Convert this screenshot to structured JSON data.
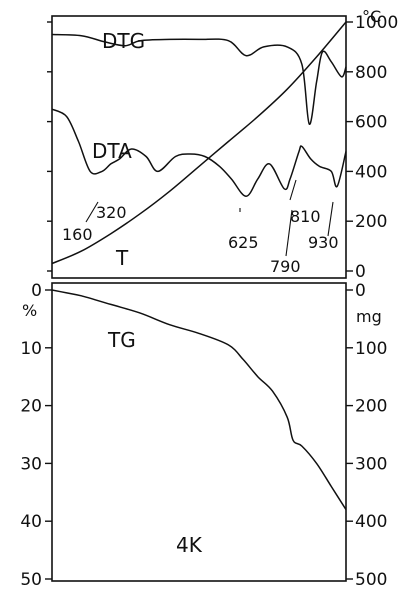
{
  "chart_data": {
    "type": "line",
    "title": "",
    "sample_label": "4K",
    "upper_panel": {
      "right_axis_unit": "°C",
      "right_axis_ticks": [
        0,
        200,
        400,
        600,
        800,
        1000
      ],
      "ylim": [
        0,
        1000
      ],
      "x_shared_note": "",
      "series": [
        {
          "name": "DTG",
          "shape": "derivative",
          "points": [
            [
              0,
              950
            ],
            [
              0.1,
              945
            ],
            [
              0.18,
              920
            ],
            [
              0.25,
              905
            ],
            [
              0.3,
              925
            ],
            [
              0.4,
              930
            ],
            [
              0.5,
              930
            ],
            [
              0.6,
              925
            ],
            [
              0.66,
              865
            ],
            [
              0.72,
              900
            ],
            [
              0.8,
              900
            ],
            [
              0.85,
              830
            ],
            [
              0.875,
              590
            ],
            [
              0.9,
              760
            ],
            [
              0.92,
              880
            ],
            [
              0.95,
              840
            ],
            [
              0.985,
              780
            ],
            [
              1,
              820
            ]
          ]
        },
        {
          "name": "DTA",
          "shape": "differential",
          "points": [
            [
              0,
              650
            ],
            [
              0.05,
              620
            ],
            [
              0.09,
              520
            ],
            [
              0.13,
              400
            ],
            [
              0.17,
              400
            ],
            [
              0.2,
              430
            ],
            [
              0.23,
              450
            ],
            [
              0.27,
              490
            ],
            [
              0.32,
              460
            ],
            [
              0.36,
              400
            ],
            [
              0.42,
              460
            ],
            [
              0.47,
              470
            ],
            [
              0.52,
              460
            ],
            [
              0.57,
              420
            ],
            [
              0.61,
              370
            ],
            [
              0.66,
              300
            ],
            [
              0.7,
              370
            ],
            [
              0.74,
              430
            ],
            [
              0.79,
              330
            ],
            [
              0.81,
              370
            ],
            [
              0.84,
              480
            ],
            [
              0.85,
              500
            ],
            [
              0.88,
              450
            ],
            [
              0.91,
              420
            ],
            [
              0.95,
              400
            ],
            [
              0.97,
              340
            ],
            [
              1,
              480
            ]
          ]
        },
        {
          "name": "T",
          "shape": "temperature",
          "points": [
            [
              0,
              30
            ],
            [
              0.1,
              80
            ],
            [
              0.2,
              150
            ],
            [
              0.3,
              230
            ],
            [
              0.4,
              320
            ],
            [
              0.5,
              420
            ],
            [
              0.6,
              520
            ],
            [
              0.7,
              620
            ],
            [
              0.8,
              730
            ],
            [
              0.9,
              860
            ],
            [
              1,
              1000
            ]
          ]
        }
      ],
      "peak_labels": [
        "160",
        "320",
        "625",
        "790",
        "810",
        "930"
      ]
    },
    "lower_panel": {
      "left_axis_unit": "%",
      "right_axis_unit": "mg",
      "left_axis_ticks": [
        0,
        10,
        20,
        30,
        40,
        50
      ],
      "right_axis_ticks": [
        0,
        100,
        200,
        300,
        400,
        500
      ],
      "ylim": [
        0,
        50
      ],
      "series": [
        {
          "name": "TG",
          "points": [
            [
              0,
              0
            ],
            [
              0.05,
              0.5
            ],
            [
              0.1,
              1
            ],
            [
              0.2,
              2.5
            ],
            [
              0.3,
              4
            ],
            [
              0.4,
              6
            ],
            [
              0.5,
              7.5
            ],
            [
              0.6,
              9.5
            ],
            [
              0.65,
              12
            ],
            [
              0.7,
              15
            ],
            [
              0.75,
              17.5
            ],
            [
              0.8,
              22
            ],
            [
              0.82,
              26
            ],
            [
              0.85,
              27
            ],
            [
              0.9,
              30
            ],
            [
              0.95,
              34
            ],
            [
              1,
              38
            ]
          ]
        }
      ]
    }
  }
}
